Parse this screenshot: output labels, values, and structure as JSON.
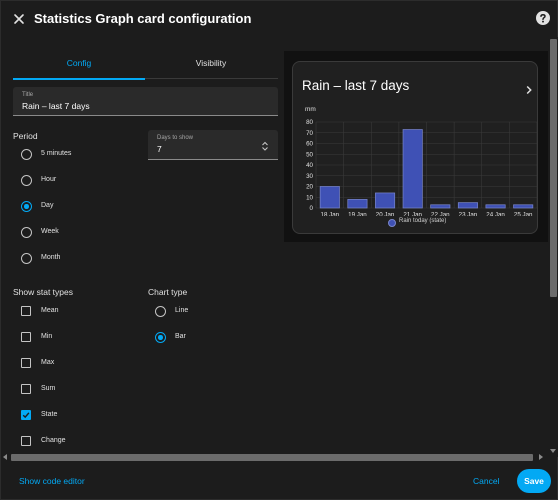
{
  "dialog": {
    "title": "Statistics Graph card configuration",
    "close_icon": "close-icon",
    "help_icon": "help-circle-icon"
  },
  "tabs": [
    {
      "label": "Config",
      "active": true
    },
    {
      "label": "Visibility",
      "active": false
    }
  ],
  "form": {
    "title_field": {
      "label": "Title",
      "value": "Rain – last 7 days"
    },
    "period": {
      "label": "Period",
      "options": [
        "5 minutes",
        "Hour",
        "Day",
        "Week",
        "Month"
      ],
      "selected": "Day"
    },
    "days_to_show": {
      "label": "Days to show",
      "value": "7"
    },
    "stat_types": {
      "label": "Show stat types",
      "options": [
        "Mean",
        "Min",
        "Max",
        "Sum",
        "State",
        "Change"
      ],
      "checked": [
        "State"
      ]
    },
    "chart_type": {
      "label": "Chart type",
      "options": [
        "Line",
        "Bar"
      ],
      "selected": "Bar"
    }
  },
  "preview": {
    "card_title": "Rain – last 7 days",
    "chevron_icon": "chevron-right-icon"
  },
  "chart_data": {
    "type": "bar",
    "title": "Rain – last 7 days",
    "ylabel": "mm",
    "xlabel": "",
    "ylim": [
      0,
      80
    ],
    "yticks": [
      0,
      10,
      20,
      30,
      40,
      50,
      60,
      70,
      80
    ],
    "grid": true,
    "legend_position": "bottom",
    "categories": [
      "18 Jan",
      "19 Jan",
      "20 Jan",
      "21 Jan",
      "22 Jan",
      "23 Jan",
      "24 Jan",
      "25 Jan"
    ],
    "series": [
      {
        "name": "Rain today (state)",
        "values": [
          20,
          8,
          14,
          73,
          3,
          5,
          3,
          3
        ]
      }
    ],
    "colors": {
      "bar_fill": "#3f51b5",
      "bar_stroke": "#7986cb"
    }
  },
  "footer": {
    "code_editor_label": "Show code editor",
    "cancel_label": "Cancel",
    "save_label": "Save"
  },
  "colors": {
    "accent": "#03a9f4",
    "background": "#1c1c1c",
    "surface": "#2a2a2a"
  }
}
